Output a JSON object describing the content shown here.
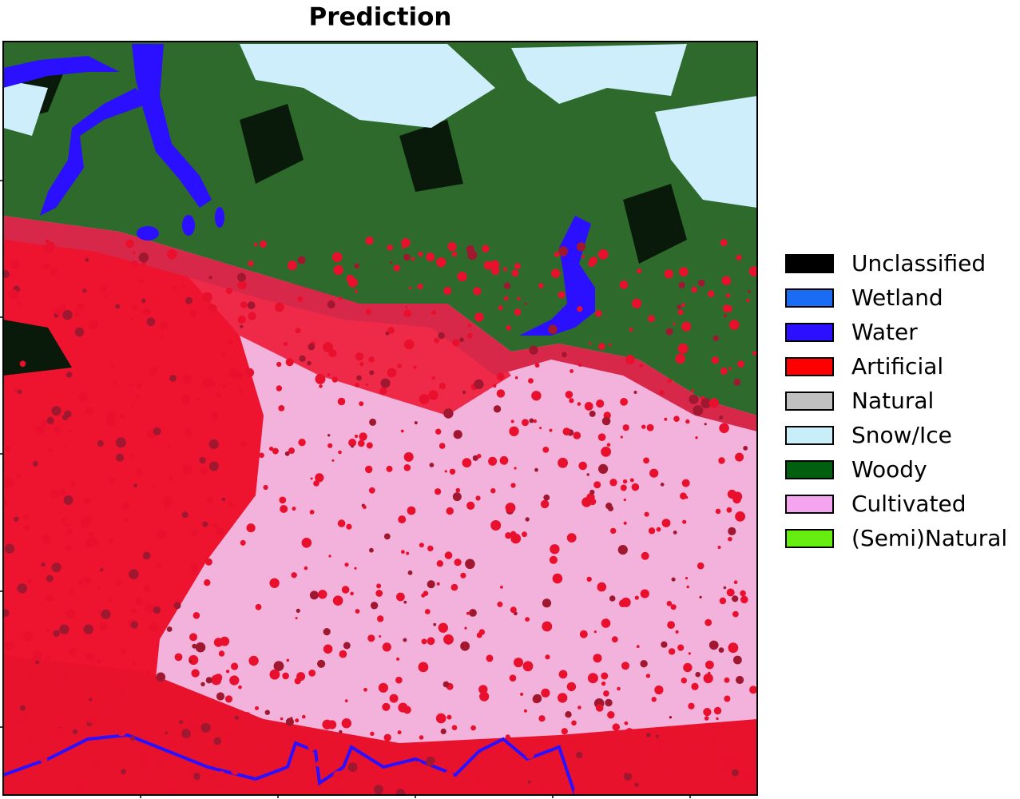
{
  "title": "Prediction",
  "legend": [
    {
      "label": "Unclassified",
      "color": "#000000"
    },
    {
      "label": "Wetland",
      "color": "#1a6cf5"
    },
    {
      "label": "Water",
      "color": "#2a10ff"
    },
    {
      "label": "Artificial",
      "color": "#ff0000"
    },
    {
      "label": "Natural",
      "color": "#c0c0c0"
    },
    {
      "label": "Snow/Ice",
      "color": "#c8eefa"
    },
    {
      "label": "Woody",
      "color": "#00600f"
    },
    {
      "label": "Cultivated",
      "color": "#f5a5ef"
    },
    {
      "label": "(Semi)Natural",
      "color": "#66ee11"
    }
  ]
}
